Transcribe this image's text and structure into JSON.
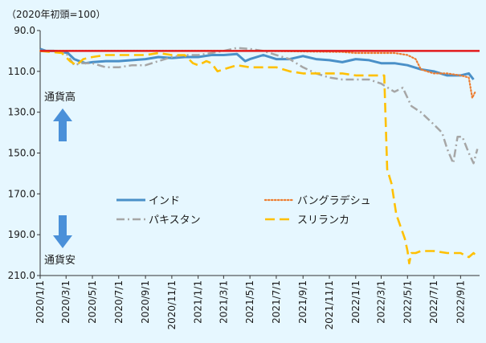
{
  "chart_data": {
    "type": "line",
    "unit_label": "（2020年初頭=100）",
    "y_axis": {
      "inverted": true,
      "range": [
        90,
        210
      ],
      "ticks": [
        "90.0",
        "110.0",
        "130.0",
        "150.0",
        "170.0",
        "190.0",
        "210.0"
      ]
    },
    "x_axis": {
      "range": [
        "2020-01-01",
        "2022-10-15"
      ],
      "ticks": [
        {
          "label": "2020/1/1",
          "date": "2020-01-01"
        },
        {
          "label": "2020/3/1",
          "date": "2020-03-01"
        },
        {
          "label": "2020/5/1",
          "date": "2020-05-01"
        },
        {
          "label": "2020/7/1",
          "date": "2020-07-01"
        },
        {
          "label": "2020/9/1",
          "date": "2020-09-01"
        },
        {
          "label": "2020/11/1",
          "date": "2020-11-01"
        },
        {
          "label": "2021/1/1",
          "date": "2021-01-01"
        },
        {
          "label": "2021/3/1",
          "date": "2021-03-01"
        },
        {
          "label": "2021/5/1",
          "date": "2021-05-01"
        },
        {
          "label": "2021/7/1",
          "date": "2021-07-01"
        },
        {
          "label": "2021/9/1",
          "date": "2021-09-01"
        },
        {
          "label": "2021/11/1",
          "date": "2021-11-01"
        },
        {
          "label": "2022/1/1",
          "date": "2022-01-01"
        },
        {
          "label": "2022/3/1",
          "date": "2022-03-01"
        },
        {
          "label": "2022/5/1",
          "date": "2022-05-01"
        },
        {
          "label": "2022/7/1",
          "date": "2022-07-01"
        },
        {
          "label": "2022/9/1",
          "date": "2022-09-01"
        }
      ]
    },
    "reference_line": {
      "value": 100,
      "color": "#E31A1C"
    },
    "annotations": {
      "up_label": "通貨高",
      "down_label": "通貨安",
      "arrow_color": "#4A90D9"
    },
    "legend_placement": "center",
    "series": [
      {
        "name": "インド",
        "color": "#4A90C8",
        "style": "solid",
        "points": [
          [
            "2020-01-01",
            99
          ],
          [
            "2020-01-15",
            100
          ],
          [
            "2020-02-01",
            100
          ],
          [
            "2020-02-20",
            100.5
          ],
          [
            "2020-03-05",
            101
          ],
          [
            "2020-03-20",
            104
          ],
          [
            "2020-04-01",
            105
          ],
          [
            "2020-04-15",
            106
          ],
          [
            "2020-05-01",
            105.5
          ],
          [
            "2020-06-01",
            105
          ],
          [
            "2020-07-01",
            105
          ],
          [
            "2020-08-01",
            104.5
          ],
          [
            "2020-09-01",
            104
          ],
          [
            "2020-10-01",
            103
          ],
          [
            "2020-11-01",
            103.5
          ],
          [
            "2020-12-01",
            103
          ],
          [
            "2021-01-01",
            103
          ],
          [
            "2021-02-01",
            102
          ],
          [
            "2021-03-01",
            102
          ],
          [
            "2021-04-01",
            101.5
          ],
          [
            "2021-04-20",
            105
          ],
          [
            "2021-05-01",
            104
          ],
          [
            "2021-06-01",
            102
          ],
          [
            "2021-07-01",
            104
          ],
          [
            "2021-08-01",
            104
          ],
          [
            "2021-09-01",
            102.5
          ],
          [
            "2021-10-01",
            104
          ],
          [
            "2021-11-01",
            104.5
          ],
          [
            "2021-12-01",
            105.5
          ],
          [
            "2022-01-01",
            104
          ],
          [
            "2022-02-01",
            104.5
          ],
          [
            "2022-03-01",
            106
          ],
          [
            "2022-04-01",
            106
          ],
          [
            "2022-05-01",
            107
          ],
          [
            "2022-06-01",
            109
          ],
          [
            "2022-07-01",
            110
          ],
          [
            "2022-08-01",
            112
          ],
          [
            "2022-09-01",
            112
          ],
          [
            "2022-09-20",
            111
          ],
          [
            "2022-10-01",
            114
          ]
        ]
      },
      {
        "name": "パキスタン",
        "color": "#A6A6A6",
        "style": "dashdot",
        "points": [
          [
            "2020-01-01",
            100
          ],
          [
            "2020-02-01",
            100
          ],
          [
            "2020-03-01",
            101
          ],
          [
            "2020-03-20",
            107
          ],
          [
            "2020-04-05",
            106
          ],
          [
            "2020-05-01",
            106
          ],
          [
            "2020-06-01",
            108
          ],
          [
            "2020-07-01",
            108
          ],
          [
            "2020-08-01",
            107
          ],
          [
            "2020-09-01",
            107
          ],
          [
            "2020-10-01",
            105
          ],
          [
            "2020-11-01",
            103
          ],
          [
            "2020-12-01",
            102
          ],
          [
            "2021-01-01",
            102
          ],
          [
            "2021-02-01",
            101
          ],
          [
            "2021-03-01",
            100
          ],
          [
            "2021-04-01",
            98.5
          ],
          [
            "2021-05-01",
            99
          ],
          [
            "2021-06-01",
            100
          ],
          [
            "2021-07-01",
            102
          ],
          [
            "2021-08-01",
            104
          ],
          [
            "2021-09-01",
            108
          ],
          [
            "2021-10-01",
            111
          ],
          [
            "2021-11-01",
            113
          ],
          [
            "2021-12-01",
            114
          ],
          [
            "2022-01-01",
            114
          ],
          [
            "2022-02-01",
            114
          ],
          [
            "2022-03-01",
            116
          ],
          [
            "2022-04-01",
            120
          ],
          [
            "2022-04-20",
            118
          ],
          [
            "2022-05-10",
            127
          ],
          [
            "2022-06-01",
            130
          ],
          [
            "2022-07-01",
            136
          ],
          [
            "2022-07-20",
            140
          ],
          [
            "2022-08-01",
            148
          ],
          [
            "2022-08-15",
            155
          ],
          [
            "2022-08-25",
            142
          ],
          [
            "2022-09-05",
            142
          ],
          [
            "2022-09-20",
            150
          ],
          [
            "2022-10-01",
            155
          ],
          [
            "2022-10-10",
            148
          ]
        ]
      },
      {
        "name": "バングラデシュ",
        "color": "#ED7D31",
        "style": "dotted",
        "points": [
          [
            "2020-01-01",
            100
          ],
          [
            "2020-06-01",
            100
          ],
          [
            "2021-01-01",
            100
          ],
          [
            "2021-06-01",
            100
          ],
          [
            "2021-12-01",
            100.5
          ],
          [
            "2022-01-01",
            101
          ],
          [
            "2022-03-01",
            101
          ],
          [
            "2022-04-01",
            101
          ],
          [
            "2022-05-01",
            102
          ],
          [
            "2022-05-20",
            104
          ],
          [
            "2022-06-01",
            109
          ],
          [
            "2022-06-15",
            110
          ],
          [
            "2022-07-01",
            111
          ],
          [
            "2022-08-01",
            111
          ],
          [
            "2022-09-01",
            112
          ],
          [
            "2022-09-20",
            113
          ],
          [
            "2022-09-28",
            123
          ],
          [
            "2022-10-05",
            120
          ]
        ]
      },
      {
        "name": "スリランカ",
        "color": "#FFC000",
        "style": "dashed",
        "points": [
          [
            "2020-01-01",
            100
          ],
          [
            "2020-02-20",
            101
          ],
          [
            "2020-03-10",
            105
          ],
          [
            "2020-03-25",
            107
          ],
          [
            "2020-04-10",
            104
          ],
          [
            "2020-05-01",
            103
          ],
          [
            "2020-06-01",
            102
          ],
          [
            "2020-07-01",
            102
          ],
          [
            "2020-08-01",
            102
          ],
          [
            "2020-09-01",
            102
          ],
          [
            "2020-10-01",
            101
          ],
          [
            "2020-11-01",
            102
          ],
          [
            "2020-12-01",
            102
          ],
          [
            "2020-12-20",
            106
          ],
          [
            "2021-01-01",
            107
          ],
          [
            "2021-01-20",
            105
          ],
          [
            "2021-02-01",
            106
          ],
          [
            "2021-02-15",
            110
          ],
          [
            "2021-03-01",
            109
          ],
          [
            "2021-04-01",
            107
          ],
          [
            "2021-05-01",
            108
          ],
          [
            "2021-06-01",
            108
          ],
          [
            "2021-07-01",
            108
          ],
          [
            "2021-08-01",
            110
          ],
          [
            "2021-09-01",
            111
          ],
          [
            "2021-10-01",
            111
          ],
          [
            "2021-11-01",
            111
          ],
          [
            "2021-12-01",
            111
          ],
          [
            "2022-01-01",
            112
          ],
          [
            "2022-02-01",
            112
          ],
          [
            "2022-03-01",
            112
          ],
          [
            "2022-03-08",
            112
          ],
          [
            "2022-03-15",
            158
          ],
          [
            "2022-03-25",
            165
          ],
          [
            "2022-04-05",
            180
          ],
          [
            "2022-04-25",
            192
          ],
          [
            "2022-05-01",
            198
          ],
          [
            "2022-05-05",
            204
          ],
          [
            "2022-05-10",
            199
          ],
          [
            "2022-05-20",
            199
          ],
          [
            "2022-06-01",
            198
          ],
          [
            "2022-07-01",
            198
          ],
          [
            "2022-08-01",
            199
          ],
          [
            "2022-08-15",
            199
          ],
          [
            "2022-09-01",
            199
          ],
          [
            "2022-09-10",
            200
          ],
          [
            "2022-09-20",
            201
          ],
          [
            "2022-10-01",
            199
          ],
          [
            "2022-10-10",
            201
          ]
        ]
      }
    ]
  }
}
